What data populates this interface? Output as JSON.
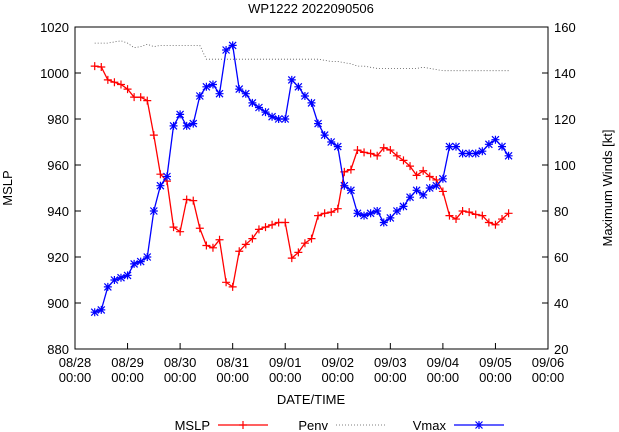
{
  "chart_data": {
    "type": "line",
    "title": "WP1222 2022090506",
    "x_label": "DATE/TIME",
    "y_label": "MSLP",
    "y2_label": "Maximum Winds [kt]",
    "xlim": [
      0,
      9
    ],
    "xticks": [
      {
        "value": 0,
        "label": "08/28 00:00"
      },
      {
        "value": 1,
        "label": "08/29 00:00"
      },
      {
        "value": 2,
        "label": "08/30 00:00"
      },
      {
        "value": 3,
        "label": "08/31 00:00"
      },
      {
        "value": 4,
        "label": "09/01 00:00"
      },
      {
        "value": 5,
        "label": "09/02 00:00"
      },
      {
        "value": 6,
        "label": "09/03 00:00"
      },
      {
        "value": 7,
        "label": "09/04 00:00"
      },
      {
        "value": 8,
        "label": "09/05 00:00"
      },
      {
        "value": 9,
        "label": "09/06 00:00"
      }
    ],
    "ylim": [
      880,
      1020
    ],
    "yticks": [
      880,
      900,
      920,
      940,
      960,
      980,
      1000,
      1020
    ],
    "y2lim": [
      20,
      160
    ],
    "y2ticks": [
      20,
      40,
      60,
      80,
      100,
      120,
      140,
      160
    ],
    "legend": "bottom",
    "x": [
      0.375,
      0.5,
      0.625,
      0.75,
      0.875,
      1,
      1.125,
      1.25,
      1.375,
      1.5,
      1.625,
      1.75,
      1.875,
      2,
      2.125,
      2.25,
      2.375,
      2.5,
      2.625,
      2.75,
      2.875,
      3,
      3.125,
      3.25,
      3.375,
      3.5,
      3.625,
      3.75,
      3.875,
      4,
      4.125,
      4.25,
      4.375,
      4.5,
      4.625,
      4.75,
      4.875,
      5,
      5.125,
      5.25,
      5.375,
      5.5,
      5.625,
      5.75,
      5.875,
      6,
      6.125,
      6.25,
      6.375,
      6.5,
      6.625,
      6.75,
      6.875,
      7,
      7.125,
      7.25,
      7.375,
      7.5,
      7.625,
      7.75,
      7.875,
      8,
      8.125,
      8.25
    ],
    "series": [
      {
        "name": "MSLP",
        "color": "#ff0000",
        "marker": "plus",
        "style": "solid",
        "values": [
          1003,
          1002.6,
          997,
          996,
          995,
          993,
          989.5,
          989.5,
          988,
          973,
          956,
          953,
          933,
          931,
          945,
          944.5,
          932.5,
          925,
          924,
          927.5,
          909,
          907,
          922.5,
          925.5,
          928,
          932,
          933,
          934,
          935,
          935,
          919.5,
          922,
          926,
          928,
          938,
          939,
          939.5,
          941,
          957,
          958,
          966.5,
          965.5,
          965,
          964,
          967.5,
          966.5,
          964,
          962,
          959.5,
          955.5,
          957.5,
          955,
          953.5,
          948.5,
          938,
          936.5,
          940,
          939.5,
          938.5,
          938,
          935,
          934,
          936.5,
          939
        ]
      },
      {
        "name": "Penv",
        "color": "#555555",
        "marker": "none",
        "style": "dotted",
        "values": [
          1013,
          1013,
          1013,
          1013.5,
          1014,
          1013,
          1011,
          1011.5,
          1012.5,
          1011.5,
          1012,
          1012,
          1012,
          1012,
          1012,
          1012,
          1012,
          1006,
          1006,
          1006,
          1006,
          1006,
          1006,
          1006,
          1006,
          1006,
          1006,
          1006,
          1006,
          1006,
          1006,
          1006,
          1006,
          1006,
          1006,
          1005.5,
          1005,
          1005,
          1004.5,
          1004,
          1003,
          1003,
          1002.5,
          1002,
          1002,
          1002,
          1002,
          1002,
          1002,
          1002,
          1002.5,
          1002,
          1001.5,
          1001,
          1001,
          1001,
          1001,
          1001,
          1001,
          1001,
          1001,
          1001,
          1001,
          1001
        ]
      },
      {
        "name": "Vmax",
        "color": "#0000ff",
        "marker": "star",
        "style": "solid",
        "axis": "y2",
        "values": [
          36,
          37,
          47,
          50,
          51,
          52,
          57,
          58,
          60,
          80,
          91,
          95,
          117,
          122,
          117,
          118,
          130,
          134,
          135,
          131,
          150,
          152,
          133,
          131,
          127,
          125,
          123,
          121,
          120,
          120,
          137,
          134,
          130,
          127,
          118,
          113,
          110,
          108,
          91,
          89,
          79,
          78,
          79,
          80,
          75,
          77,
          80,
          82,
          86,
          89,
          87,
          90,
          91,
          94,
          108,
          108,
          105,
          105,
          105,
          106,
          109,
          111,
          108,
          104
        ]
      }
    ]
  }
}
